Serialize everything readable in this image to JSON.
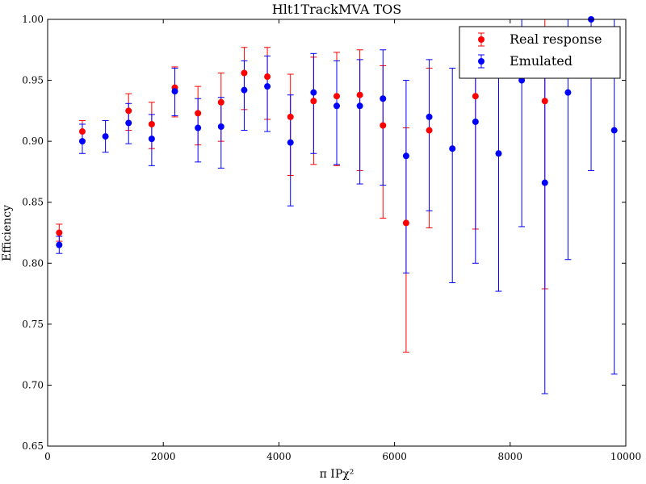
{
  "chart_data": {
    "type": "scatter",
    "title": "Hlt1TrackMVA TOS",
    "xlabel": "π IPχ²",
    "ylabel": "Efficiency",
    "xlim": [
      0,
      10000
    ],
    "ylim": [
      0.65,
      1.0
    ],
    "x_ticks": [
      0,
      2000,
      4000,
      6000,
      8000,
      10000
    ],
    "y_ticks": [
      0.65,
      0.7,
      0.75,
      0.8,
      0.85,
      0.9,
      0.95,
      1.0
    ],
    "x_tick_labels": [
      "0",
      "2000",
      "4000",
      "6000",
      "8000",
      "10000"
    ],
    "y_tick_labels": [
      "0.65",
      "0.70",
      "0.75",
      "0.80",
      "0.85",
      "0.90",
      "0.95",
      "1.00"
    ],
    "grid": false,
    "legend_position": "top-right",
    "series": [
      {
        "name": "Real response",
        "color": "#ff0000",
        "x": [
          200,
          600,
          1400,
          1800,
          2200,
          2600,
          3000,
          3400,
          3800,
          4200,
          4600,
          5000,
          5400,
          5800,
          6200,
          6600,
          7400,
          8600
        ],
        "y": [
          0.825,
          0.908,
          0.925,
          0.914,
          0.944,
          0.923,
          0.932,
          0.956,
          0.953,
          0.92,
          0.933,
          0.937,
          0.938,
          0.913,
          0.833,
          0.909,
          0.937,
          0.933
        ],
        "err_low": [
          0.007,
          0.007,
          0.016,
          0.02,
          0.024,
          0.026,
          0.032,
          0.03,
          0.035,
          0.048,
          0.052,
          0.057,
          0.062,
          0.076,
          0.106,
          0.08,
          0.109,
          0.154
        ],
        "err_high": [
          0.007,
          0.009,
          0.014,
          0.018,
          0.017,
          0.022,
          0.024,
          0.021,
          0.024,
          0.035,
          0.036,
          0.036,
          0.037,
          0.049,
          0.078,
          0.051,
          0.032,
          0.067
        ]
      },
      {
        "name": "Emulated",
        "color": "#0000ff",
        "x": [
          200,
          600,
          1000,
          1400,
          1800,
          2200,
          2600,
          3000,
          3400,
          3800,
          4200,
          4600,
          5000,
          5400,
          5800,
          6200,
          6600,
          7000,
          7400,
          7800,
          8200,
          8600,
          9000,
          9400,
          9800
        ],
        "y": [
          0.815,
          0.9,
          0.904,
          0.915,
          0.902,
          0.941,
          0.911,
          0.912,
          0.942,
          0.945,
          0.899,
          0.94,
          0.929,
          0.929,
          0.935,
          0.888,
          0.92,
          0.894,
          0.916,
          0.89,
          0.95,
          0.866,
          0.94,
          1.0,
          0.909
        ],
        "err_low": [
          0.007,
          0.01,
          0.013,
          0.017,
          0.022,
          0.02,
          0.028,
          0.034,
          0.033,
          0.037,
          0.052,
          0.05,
          0.048,
          0.064,
          0.071,
          0.096,
          0.077,
          0.11,
          0.116,
          0.113,
          0.12,
          0.173,
          0.137,
          0.124,
          0.2
        ],
        "err_high": [
          0.007,
          0.014,
          0.013,
          0.016,
          0.02,
          0.019,
          0.024,
          0.024,
          0.024,
          0.025,
          0.039,
          0.032,
          0.037,
          0.038,
          0.04,
          0.062,
          0.047,
          0.066,
          0.055,
          0.07,
          0.05,
          0.1,
          0.06,
          0.0,
          0.091
        ]
      }
    ]
  }
}
